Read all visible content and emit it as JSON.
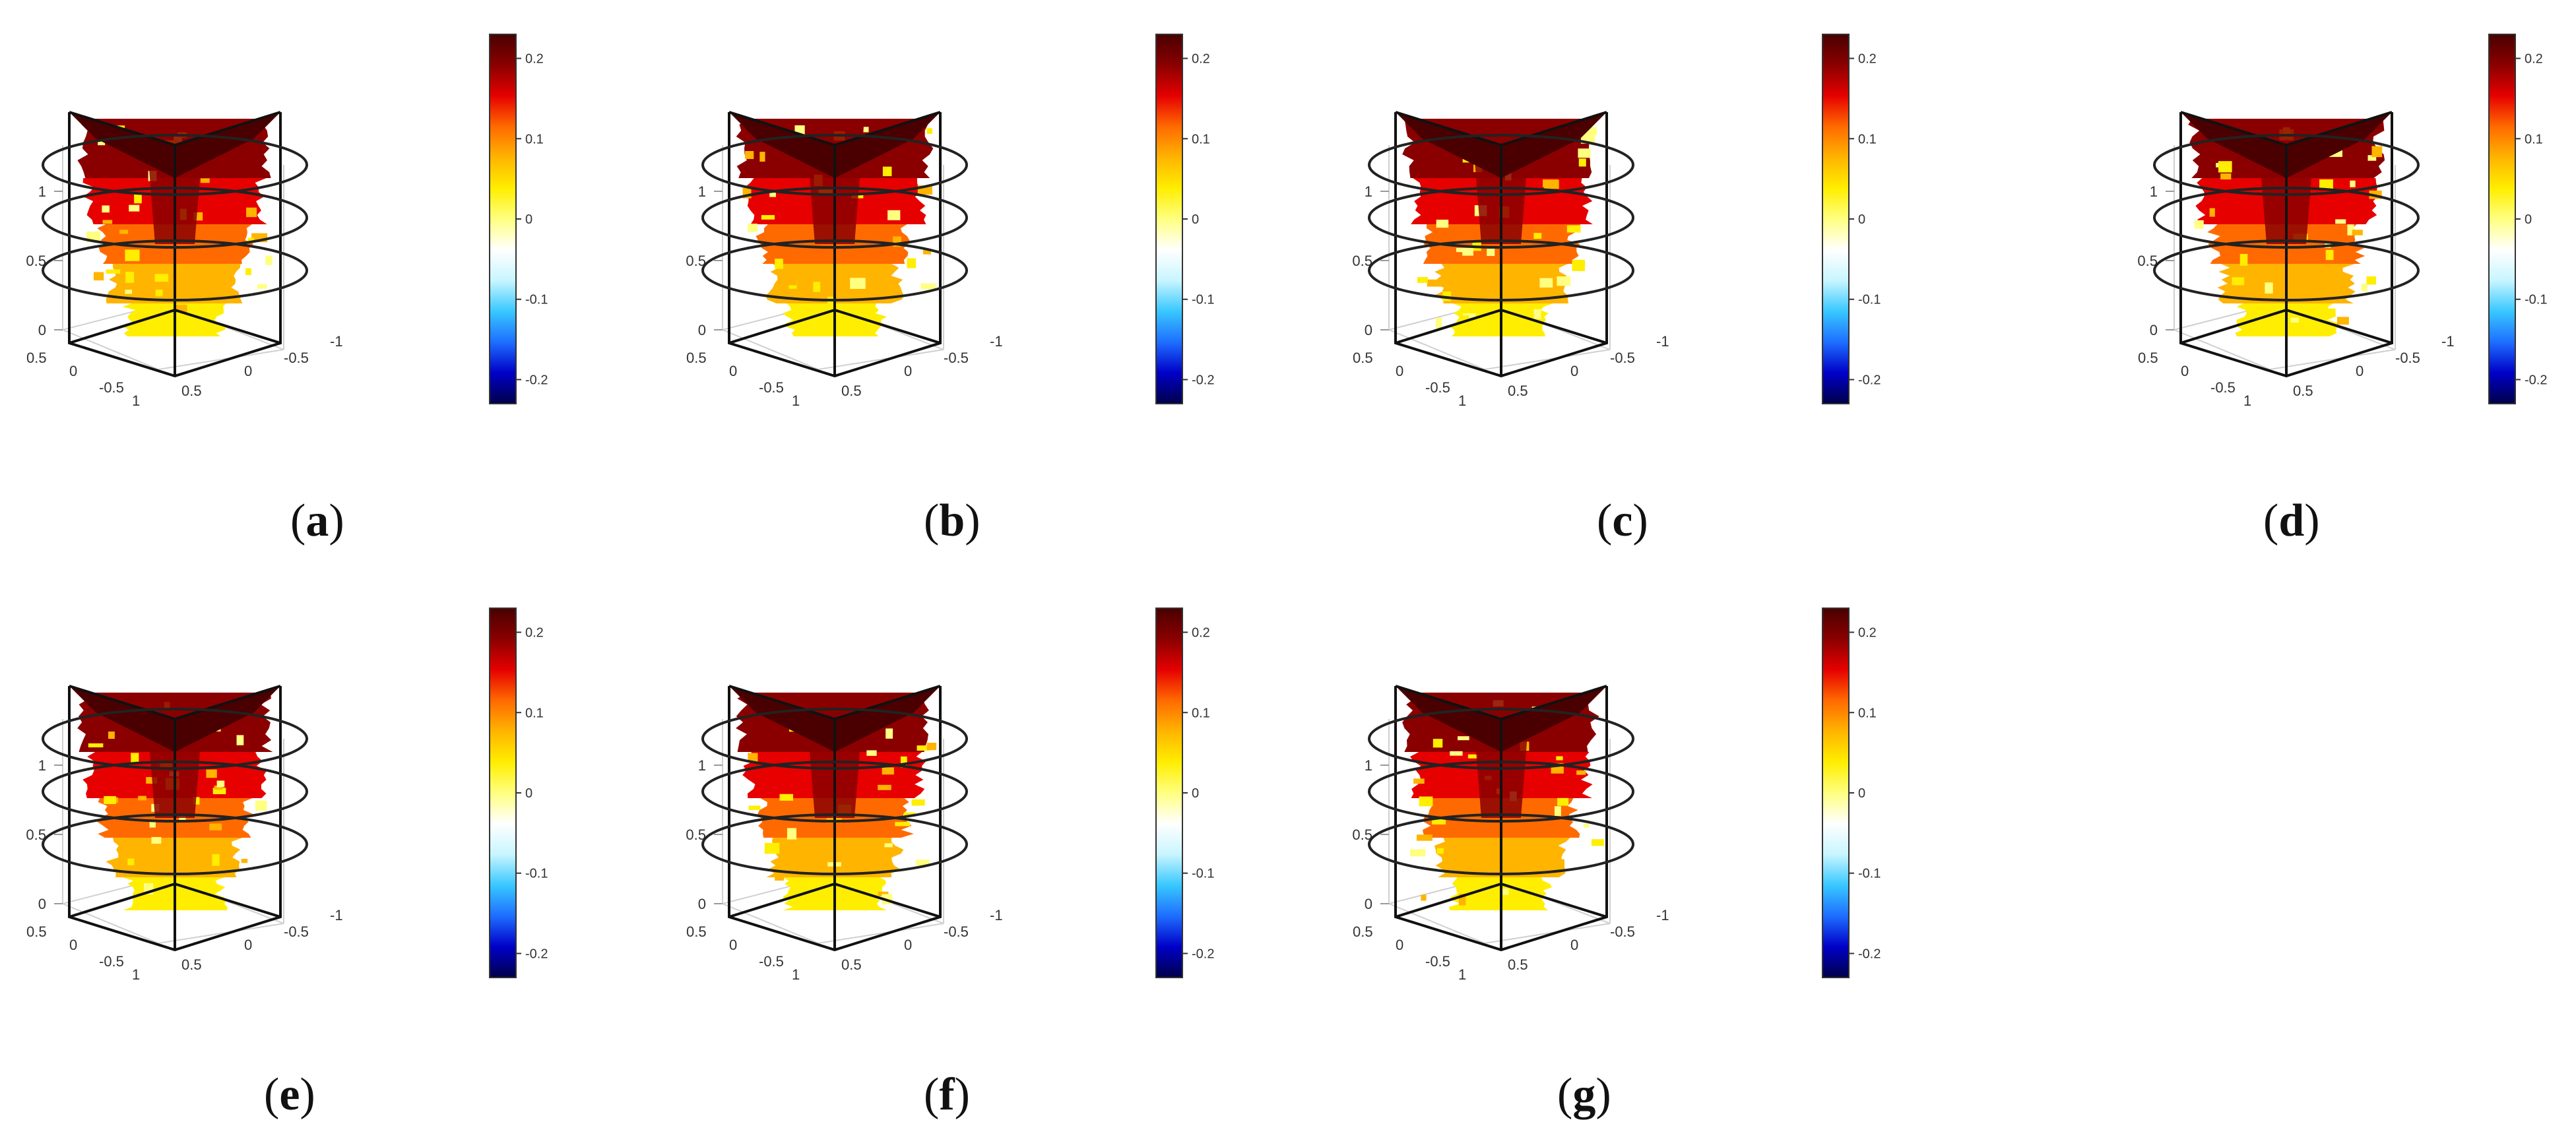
{
  "chart_data": {
    "type": "3d-slice",
    "colorbar": {
      "range": [
        -0.23,
        0.23
      ],
      "ticks": [
        "0.2",
        "0.1",
        "0",
        "-0.1",
        "-0.2"
      ],
      "tick_values": [
        0.2,
        0.1,
        0,
        -0.1,
        -0.2
      ],
      "colormap": [
        "#00004a",
        "#0000c8",
        "#1e6eff",
        "#38c8ff",
        "#c8f5ff",
        "#ffffff",
        "#ffff80",
        "#ffee00",
        "#ffb400",
        "#ff6a00",
        "#e60000",
        "#8a0000",
        "#4a0000"
      ]
    },
    "axes": {
      "z_ticks": [
        "0",
        "0.5",
        "1"
      ],
      "x_ticks": [
        "0.5",
        "0",
        "-0.5",
        "1"
      ],
      "y_ticks": [
        "-1",
        "-0.5",
        "0",
        "0.5",
        "1"
      ],
      "rings_z": [
        0.25,
        0.6,
        0.95
      ]
    },
    "panels": [
      {
        "id": "a",
        "label": "a"
      },
      {
        "id": "b",
        "label": "b"
      },
      {
        "id": "c",
        "label": "c"
      },
      {
        "id": "d",
        "label": "d"
      },
      {
        "id": "e",
        "label": "e"
      },
      {
        "id": "f",
        "label": "f"
      },
      {
        "id": "g",
        "label": "g"
      }
    ]
  }
}
